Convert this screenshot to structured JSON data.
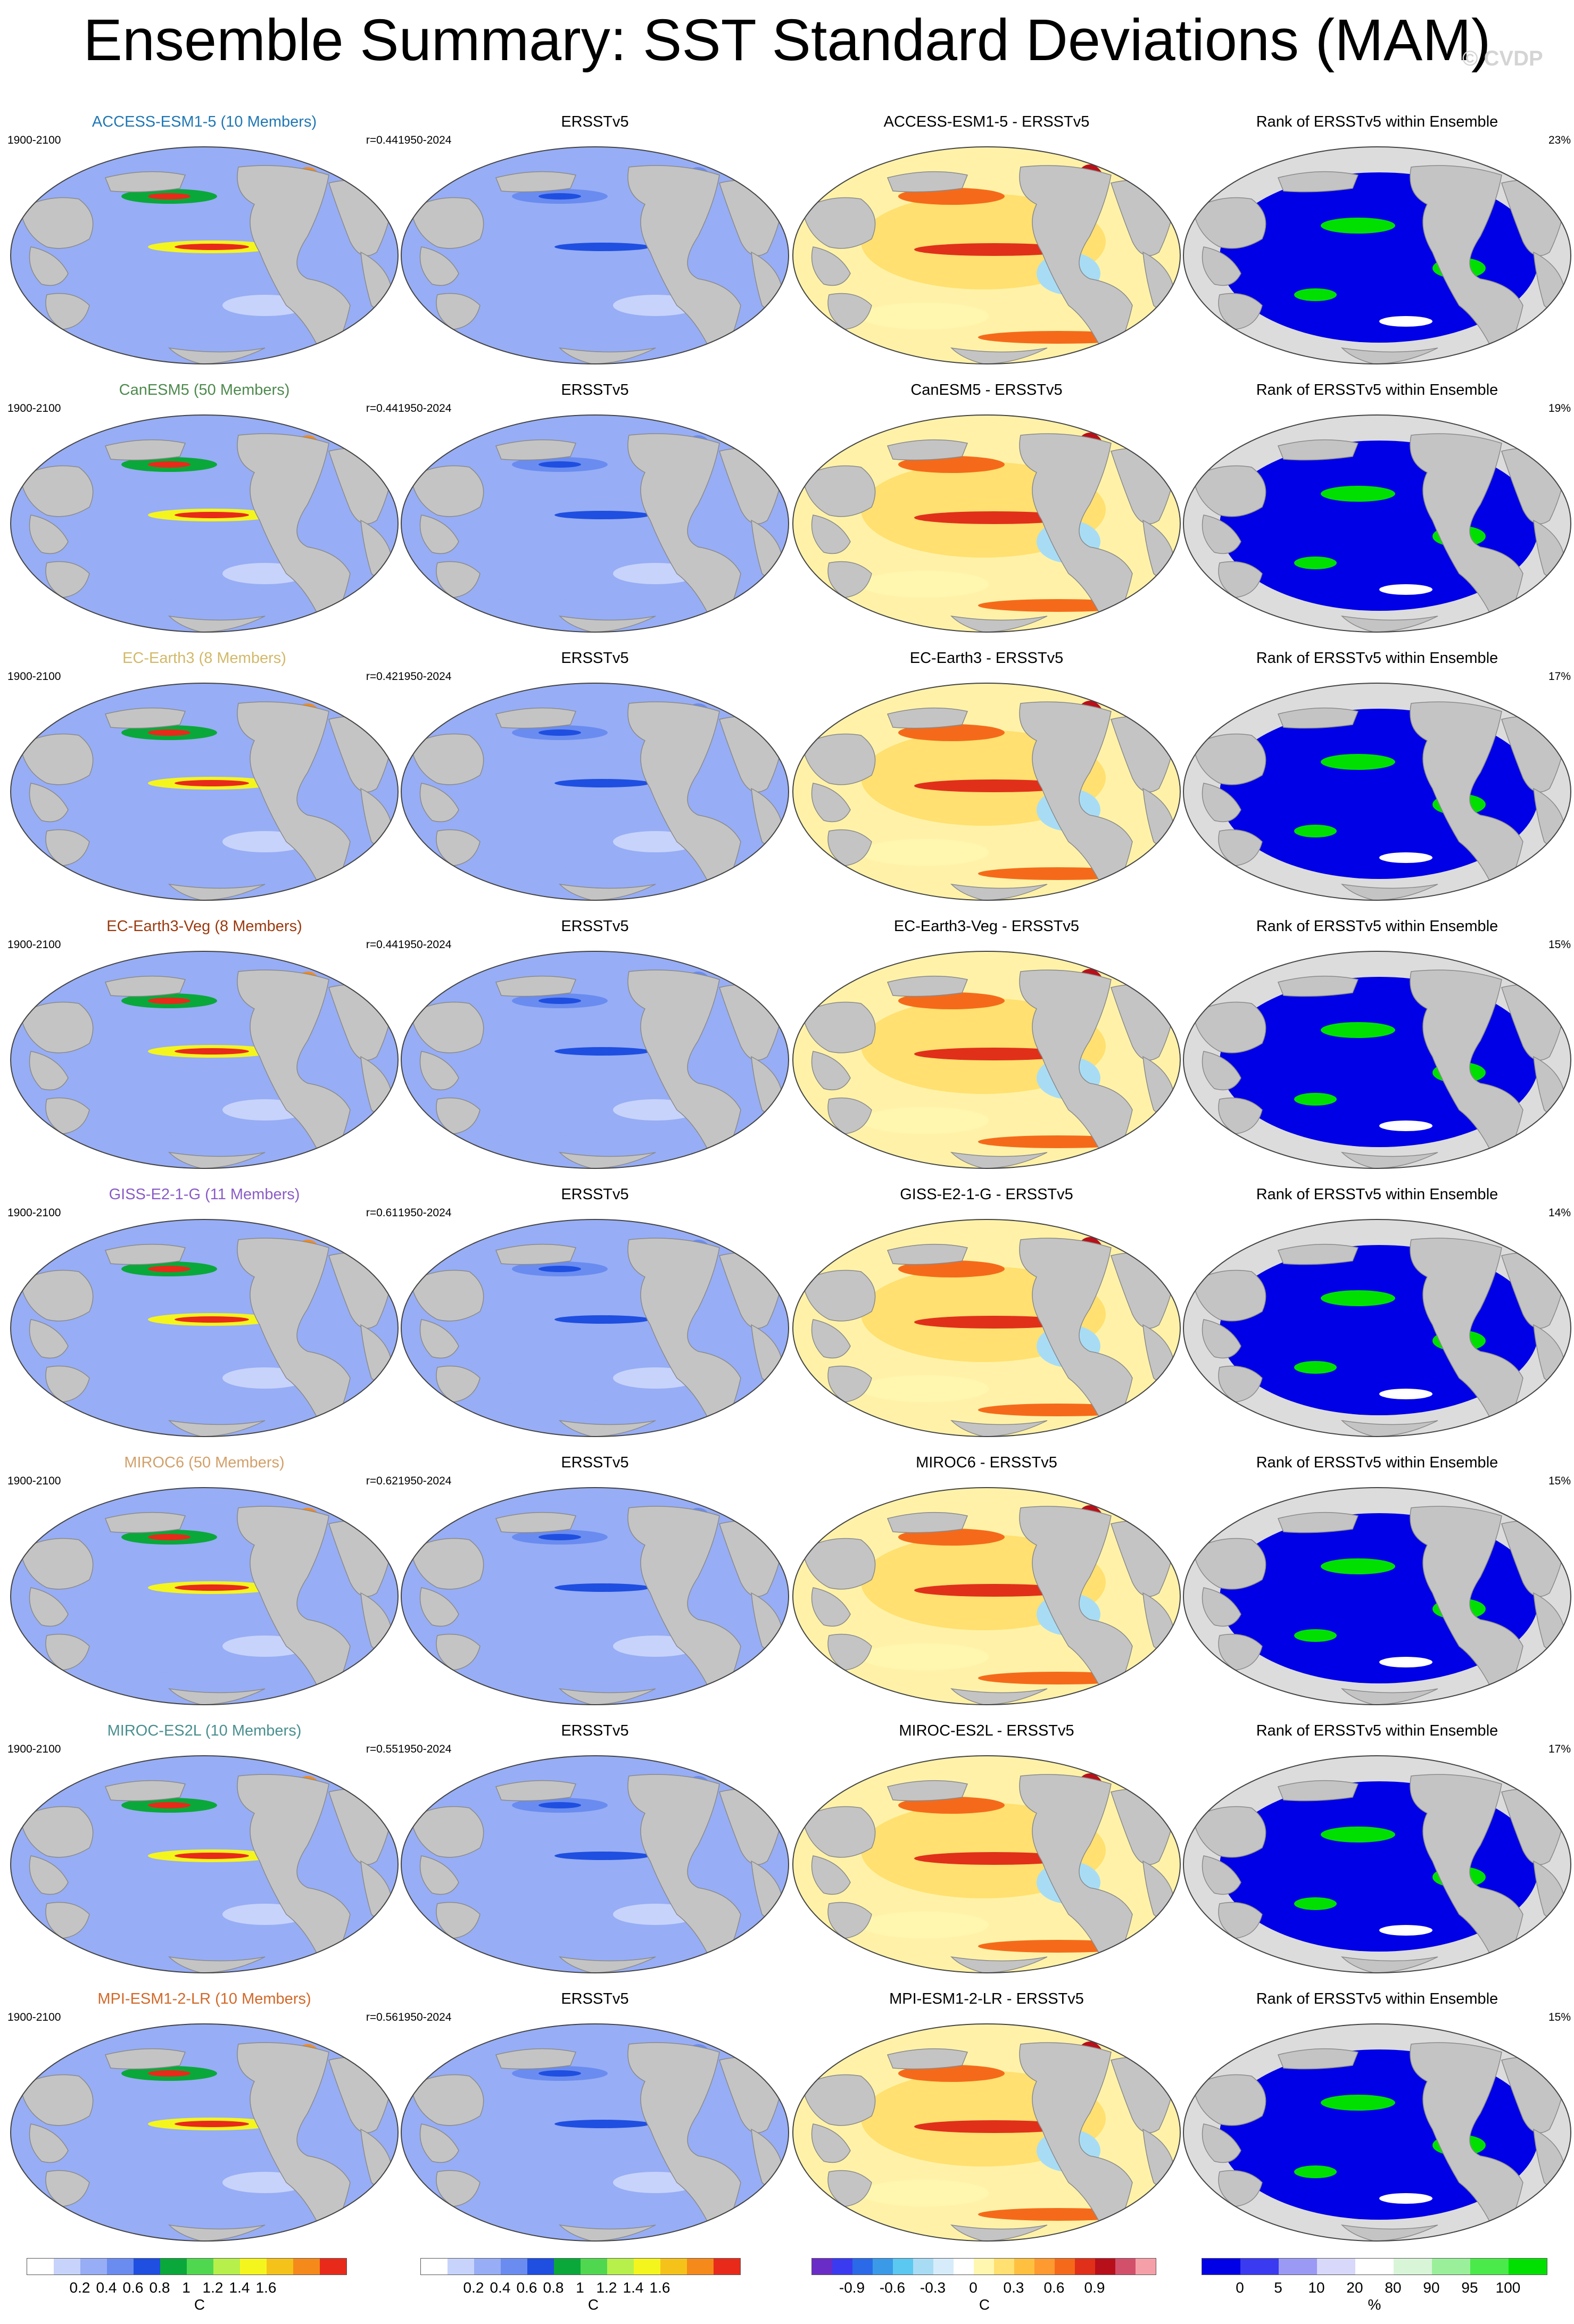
{
  "title": "Ensemble Summary: SST Standard Deviations (MAM)",
  "credit": "© CVDP",
  "rows": [
    {
      "model": "ACCESS-ESM1-5 (10 Members)",
      "model_color": "#1f77b4",
      "period": "1900-2100",
      "r": "r=0.44",
      "obs": "ERSSTv5",
      "obs_period": "1950-2024",
      "diff": "ACCESS-ESM1-5 - ERSSTv5",
      "rank_title": "Rank of ERSSTv5 within Ensemble",
      "rank_pct": "23%"
    },
    {
      "model": "CanESM5 (50 Members)",
      "model_color": "#4e8a4e",
      "period": "1900-2100",
      "r": "r=0.44",
      "obs": "ERSSTv5",
      "obs_period": "1950-2024",
      "diff": "CanESM5 - ERSSTv5",
      "rank_title": "Rank of ERSSTv5 within Ensemble",
      "rank_pct": "19%"
    },
    {
      "model": "EC-Earth3 (8 Members)",
      "model_color": "#d2b96a",
      "period": "1900-2100",
      "r": "r=0.42",
      "obs": "ERSSTv5",
      "obs_period": "1950-2024",
      "diff": "EC-Earth3 - ERSSTv5",
      "rank_title": "Rank of ERSSTv5 within Ensemble",
      "rank_pct": "17%"
    },
    {
      "model": "EC-Earth3-Veg (8 Members)",
      "model_color": "#9b3a0f",
      "period": "1900-2100",
      "r": "r=0.44",
      "obs": "ERSSTv5",
      "obs_period": "1950-2024",
      "diff": "EC-Earth3-Veg - ERSSTv5",
      "rank_title": "Rank of ERSSTv5 within Ensemble",
      "rank_pct": "15%"
    },
    {
      "model": "GISS-E2-1-G (11 Members)",
      "model_color": "#8a5cc6",
      "period": "1900-2100",
      "r": "r=0.61",
      "obs": "ERSSTv5",
      "obs_period": "1950-2024",
      "diff": "GISS-E2-1-G - ERSSTv5",
      "rank_title": "Rank of ERSSTv5 within Ensemble",
      "rank_pct": "14%"
    },
    {
      "model": "MIROC6 (50 Members)",
      "model_color": "#d2a06a",
      "period": "1900-2100",
      "r": "r=0.62",
      "obs": "ERSSTv5",
      "obs_period": "1950-2024",
      "diff": "MIROC6 - ERSSTv5",
      "rank_title": "Rank of ERSSTv5 within Ensemble",
      "rank_pct": "15%"
    },
    {
      "model": "MIROC-ES2L (10 Members)",
      "model_color": "#4a8f8f",
      "period": "1900-2100",
      "r": "r=0.55",
      "obs": "ERSSTv5",
      "obs_period": "1950-2024",
      "diff": "MIROC-ES2L - ERSSTv5",
      "rank_title": "Rank of ERSSTv5 within Ensemble",
      "rank_pct": "17%"
    },
    {
      "model": "MPI-ESM1-2-LR (10 Members)",
      "model_color": "#d2692a",
      "period": "1900-2100",
      "r": "r=0.56",
      "obs": "ERSSTv5",
      "obs_period": "1950-2024",
      "diff": "MPI-ESM1-2-LR - ERSSTv5",
      "rank_title": "Rank of ERSSTv5 within Ensemble",
      "rank_pct": "15%"
    }
  ],
  "colorbars": {
    "sd": {
      "colors": [
        "#ffffff",
        "#c7d3fb",
        "#97adf5",
        "#6a8cf0",
        "#1f4fe0",
        "#0aa83a",
        "#4fd84f",
        "#b7f04a",
        "#f5f51e",
        "#f5c21a",
        "#f58a1a",
        "#e82a1a"
      ],
      "ticks": [
        "0.2",
        "0.4",
        "0.6",
        "0.8",
        "1",
        "1.2",
        "1.4",
        "1.6"
      ],
      "unit": "C"
    },
    "diff": {
      "colors": [
        "#6a2cc6",
        "#3a3af0",
        "#2a6ae8",
        "#3a9ae8",
        "#5ac8f0",
        "#a8dcf5",
        "#d6ecfa",
        "#ffffff",
        "#fff7b0",
        "#ffe070",
        "#ffc040",
        "#ff9a30",
        "#f56a1a",
        "#e0301a",
        "#b8101a",
        "#d2506a",
        "#f5a0a8"
      ],
      "ticks": [
        "-0.9",
        "-0.6",
        "-0.3",
        "0",
        "0.3",
        "0.6",
        "0.9"
      ],
      "unit": "C"
    },
    "rank": {
      "colors": [
        "#0000e6",
        "#3a3af0",
        "#9a9af5",
        "#d8d8fa",
        "#ffffff",
        "#d8f5d8",
        "#9af09a",
        "#4aea4a",
        "#00e000"
      ],
      "ticks": [
        "0",
        "5",
        "10",
        "20",
        "80",
        "90",
        "95",
        "100"
      ],
      "unit": "%"
    }
  }
}
